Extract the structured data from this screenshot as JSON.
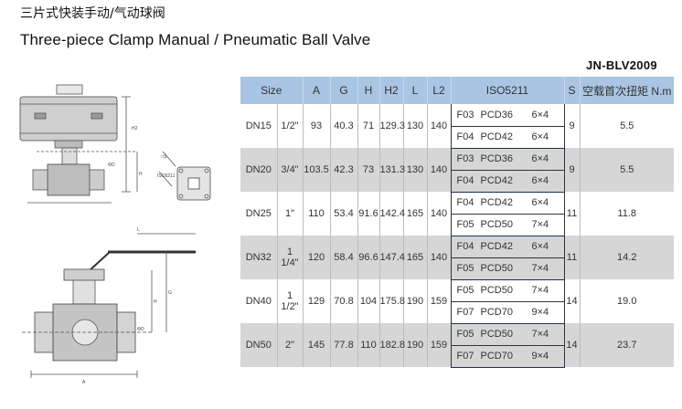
{
  "title_cn": "三片式快装手动/气动球阀",
  "title_en": "Three-piece Clamp Manual / Pneumatic Ball Valve",
  "model": "JN-BLV2009",
  "table": {
    "headers": [
      "Size",
      "A",
      "G",
      "H",
      "H2",
      "L",
      "L2",
      "ISO5211",
      "S",
      "空载首次扭矩 N.m"
    ],
    "rows": [
      {
        "dn": "DN15",
        "inch": "1/2\"",
        "A": "93",
        "G": "40.3",
        "H": "71",
        "H2": "129.3",
        "L": "130",
        "L2": "140",
        "iso": [
          {
            "code": "F03",
            "pcd": "PCD36",
            "bolts": "6×4"
          },
          {
            "code": "F04",
            "pcd": "PCD42",
            "bolts": "6×4"
          }
        ],
        "S": "9",
        "torque": "5.5"
      },
      {
        "dn": "DN20",
        "inch": "3/4\"",
        "A": "103.5",
        "G": "42.3",
        "H": "73",
        "H2": "131.3",
        "L": "130",
        "L2": "140",
        "iso": [
          {
            "code": "F03",
            "pcd": "PCD36",
            "bolts": "6×4"
          },
          {
            "code": "F04",
            "pcd": "PCD42",
            "bolts": "6×4"
          }
        ],
        "S": "9",
        "torque": "5.5"
      },
      {
        "dn": "DN25",
        "inch": "1\"",
        "A": "110",
        "G": "53.4",
        "H": "91.6",
        "H2": "142.4",
        "L": "165",
        "L2": "140",
        "iso": [
          {
            "code": "F04",
            "pcd": "PCD42",
            "bolts": "6×4"
          },
          {
            "code": "F05",
            "pcd": "PCD50",
            "bolts": "7×4"
          }
        ],
        "S": "11",
        "torque": "11.8"
      },
      {
        "dn": "DN32",
        "inch": "1 1/4\"",
        "A": "120",
        "G": "58.4",
        "H": "96.6",
        "H2": "147.4",
        "L": "165",
        "L2": "140",
        "iso": [
          {
            "code": "F04",
            "pcd": "PCD42",
            "bolts": "6×4"
          },
          {
            "code": "F05",
            "pcd": "PCD50",
            "bolts": "7×4"
          }
        ],
        "S": "11",
        "torque": "14.2"
      },
      {
        "dn": "DN40",
        "inch": "1 1/2\"",
        "A": "129",
        "G": "70.8",
        "H": "104",
        "H2": "175.8",
        "L": "190",
        "L2": "159",
        "iso": [
          {
            "code": "F05",
            "pcd": "PCD50",
            "bolts": "7×4"
          },
          {
            "code": "F07",
            "pcd": "PCD70",
            "bolts": "9×4"
          }
        ],
        "S": "14",
        "torque": "19.0"
      },
      {
        "dn": "DN50",
        "inch": "2\"",
        "A": "145",
        "G": "77.8",
        "H": "110",
        "H2": "182.8",
        "L": "190",
        "L2": "159",
        "iso": [
          {
            "code": "F05",
            "pcd": "PCD50",
            "bolts": "7×4"
          },
          {
            "code": "F07",
            "pcd": "PCD70",
            "bolts": "9×4"
          }
        ],
        "S": "14",
        "torque": "23.7"
      }
    ]
  },
  "drawing_labels": {
    "top_H2": "H2",
    "top_H": "H",
    "top_d": "ΦD",
    "top_s1": "□S",
    "top_iso": "ISO5211",
    "bot_L": "L",
    "bot_H": "H",
    "bot_G": "G",
    "bot_A": "A",
    "bot_d": "ΦD"
  },
  "colors": {
    "header_bg": "#a9c5e3",
    "band_gray": "#d6d6d6",
    "group_line": "#1e2f55"
  }
}
